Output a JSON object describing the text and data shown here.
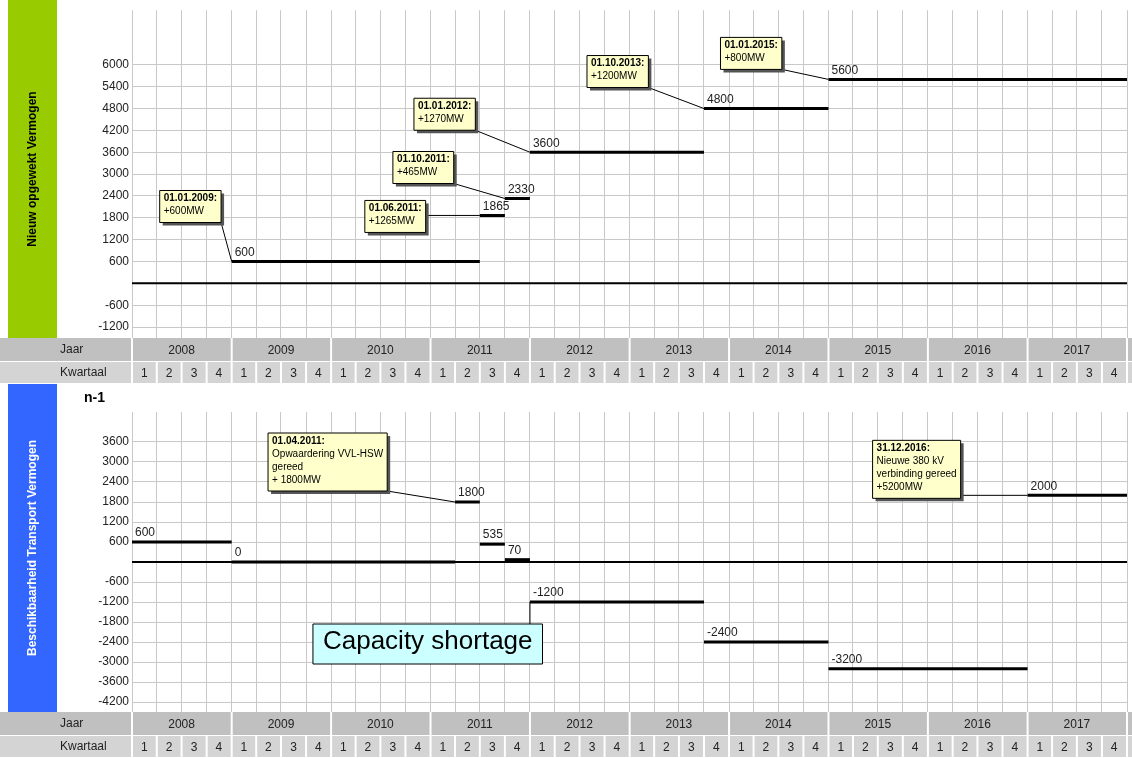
{
  "chart_data": [
    {
      "type": "line",
      "ylabel": "Nieuw opgewekt Vermogen",
      "xlabel": "Kwartaal",
      "x2label": "Jaar",
      "marker": "none",
      "grid": true,
      "xlim": [
        "2008-01-01",
        "2018-01-01"
      ],
      "xticks": [
        {
          "value": "2008-01-01",
          "label": null
        },
        {
          "value": "2008-02-15",
          "label": "1"
        },
        {
          "value": "2008-04-01",
          "label": null
        },
        {
          "value": "2008-05-16",
          "label": "2"
        },
        {
          "value": "2008-07-01",
          "label": null
        },
        {
          "value": "2008-08-16",
          "label": "3"
        },
        {
          "value": "2008-10-01",
          "label": null
        },
        {
          "value": "2008-11-15",
          "label": "4"
        },
        {
          "value": "2009-01-01",
          "label": null
        },
        {
          "value": "2009-02-15",
          "label": "1"
        },
        {
          "value": "2009-04-01",
          "label": null
        },
        {
          "value": "2009-05-16",
          "label": "2"
        },
        {
          "value": "2009-07-01",
          "label": null
        },
        {
          "value": "2009-08-16",
          "label": "3"
        },
        {
          "value": "2009-10-01",
          "label": null
        },
        {
          "value": "2009-11-15",
          "label": "4"
        },
        {
          "value": "2010-01-01",
          "label": null
        },
        {
          "value": "2010-02-15",
          "label": "1"
        },
        {
          "value": "2010-04-01",
          "label": null
        },
        {
          "value": "2010-05-16",
          "label": "2"
        },
        {
          "value": "2010-07-01",
          "label": null
        },
        {
          "value": "2010-08-16",
          "label": "3"
        },
        {
          "value": "2010-10-01",
          "label": null
        },
        {
          "value": "2010-11-15",
          "label": "4"
        },
        {
          "value": "2011-01-01",
          "label": null
        },
        {
          "value": "2011-02-15",
          "label": "1"
        },
        {
          "value": "2011-04-01",
          "label": null
        },
        {
          "value": "2011-05-16",
          "label": "2"
        },
        {
          "value": "2011-07-01",
          "label": null
        },
        {
          "value": "2011-08-16",
          "label": "3"
        },
        {
          "value": "2011-10-01",
          "label": null
        },
        {
          "value": "2011-11-15",
          "label": "4"
        },
        {
          "value": "2012-01-01",
          "label": null
        },
        {
          "value": "2012-02-15",
          "label": "1"
        },
        {
          "value": "2012-04-01",
          "label": null
        },
        {
          "value": "2012-05-16",
          "label": "2"
        },
        {
          "value": "2012-07-01",
          "label": null
        },
        {
          "value": "2012-08-16",
          "label": "3"
        },
        {
          "value": "2012-10-01",
          "label": null
        },
        {
          "value": "2012-11-15",
          "label": "4"
        },
        {
          "value": "2013-01-01",
          "label": null
        },
        {
          "value": "2013-02-15",
          "label": "1"
        },
        {
          "value": "2013-04-01",
          "label": null
        },
        {
          "value": "2013-05-16",
          "label": "2"
        },
        {
          "value": "2013-07-01",
          "label": null
        },
        {
          "value": "2013-08-16",
          "label": "3"
        },
        {
          "value": "2013-10-01",
          "label": null
        },
        {
          "value": "2013-11-15",
          "label": "4"
        },
        {
          "value": "2014-01-01",
          "label": null
        },
        {
          "value": "2014-02-15",
          "label": "1"
        },
        {
          "value": "2014-04-01",
          "label": null
        },
        {
          "value": "2014-05-16",
          "label": "2"
        },
        {
          "value": "2014-07-01",
          "label": null
        },
        {
          "value": "2014-08-16",
          "label": "3"
        },
        {
          "value": "2014-10-01",
          "label": null
        },
        {
          "value": "2014-11-15",
          "label": "4"
        },
        {
          "value": "2015-01-01",
          "label": null
        },
        {
          "value": "2015-02-15",
          "label": "1"
        },
        {
          "value": "2015-04-01",
          "label": null
        },
        {
          "value": "2015-05-16",
          "label": "2"
        },
        {
          "value": "2015-07-01",
          "label": null
        },
        {
          "value": "2015-08-16",
          "label": "3"
        },
        {
          "value": "2015-10-01",
          "label": null
        },
        {
          "value": "2015-11-15",
          "label": "4"
        },
        {
          "value": "2016-01-01",
          "label": null
        },
        {
          "value": "2016-02-15",
          "label": "1"
        },
        {
          "value": "2016-04-01",
          "label": null
        },
        {
          "value": "2016-05-16",
          "label": "2"
        },
        {
          "value": "2016-07-01",
          "label": null
        },
        {
          "value": "2016-08-16",
          "label": "3"
        },
        {
          "value": "2016-10-01",
          "label": null
        },
        {
          "value": "2016-11-15",
          "label": "4"
        },
        {
          "value": "2017-01-01",
          "label": null
        },
        {
          "value": "2017-02-15",
          "label": "1"
        },
        {
          "value": "2017-04-01",
          "label": null
        },
        {
          "value": "2017-05-16",
          "label": "2"
        },
        {
          "value": "2017-07-01",
          "label": null
        },
        {
          "value": "2017-08-16",
          "label": "3"
        },
        {
          "value": "2017-10-01",
          "label": null
        },
        {
          "value": "2017-11-15",
          "label": "4"
        },
        {
          "value": "2018-01-01",
          "label": null
        }
      ],
      "x2lim": [
        "2008-01-01",
        "2018-01-01"
      ],
      "x2ticks": [
        {
          "value": "2008-01-01",
          "label": null
        },
        {
          "value": "2008-07-01",
          "label": "2008"
        },
        {
          "value": "2009-01-01",
          "label": null
        },
        {
          "value": "2009-07-01",
          "label": "2009"
        },
        {
          "value": "2010-01-01",
          "label": null
        },
        {
          "value": "2010-07-01",
          "label": "2010"
        },
        {
          "value": "2011-01-01",
          "label": null
        },
        {
          "value": "2011-07-01",
          "label": "2011"
        },
        {
          "value": "2012-01-01",
          "label": null
        },
        {
          "value": "2012-07-01",
          "label": "2012"
        },
        {
          "value": "2013-01-01",
          "label": null
        },
        {
          "value": "2013-07-01",
          "label": "2013"
        },
        {
          "value": "2014-01-01",
          "label": null
        },
        {
          "value": "2014-07-01",
          "label": "2014"
        },
        {
          "value": "2015-01-01",
          "label": null
        },
        {
          "value": "2015-07-01",
          "label": "2015"
        },
        {
          "value": "2016-01-01",
          "label": null
        },
        {
          "value": "2016-07-01",
          "label": "2016"
        },
        {
          "value": "2017-01-01",
          "label": null
        },
        {
          "value": "2017-07-01",
          "label": "2017"
        },
        {
          "value": "2018-01-01",
          "label": null
        }
      ],
      "ylim": [
        -1500,
        7500
      ],
      "yticks": [
        6000,
        5400,
        4800,
        4200,
        3600,
        3000,
        2400,
        1800,
        1200,
        600,
        -600,
        -1200
      ],
      "series": [
        {
          "color": "#000000",
          "x": [
            "2009-01-01",
            "2011-07-01"
          ],
          "values": [
            600,
            600
          ],
          "value_labels": [
            "600",
            null
          ]
        },
        {
          "color": "#000000",
          "x": [
            "2011-07-01",
            "2011-10-01"
          ],
          "values": [
            1865,
            1865
          ],
          "value_labels": [
            "1865",
            null
          ]
        },
        {
          "color": "#000000",
          "x": [
            "2011-10-01",
            "2012-01-01"
          ],
          "values": [
            2330,
            2330
          ],
          "value_labels": [
            "2330",
            null
          ]
        },
        {
          "color": "#000000",
          "x": [
            "2012-01-01",
            "2013-10-01"
          ],
          "values": [
            3600,
            3600
          ],
          "value_labels": [
            "3600",
            null
          ]
        },
        {
          "color": "#000000",
          "x": [
            "2013-10-01",
            "2015-01-01"
          ],
          "values": [
            4800,
            4800
          ],
          "value_labels": [
            "4800",
            null
          ]
        },
        {
          "color": "#000000",
          "x": [
            "2015-01-01",
            "2018-01-01"
          ],
          "values": [
            5600,
            5600
          ],
          "value_labels": [
            "5600",
            null
          ]
        }
      ],
      "ref_lines": [
        {
          "axis": "y",
          "value": 0,
          "color": "#000000"
        }
      ],
      "annotations": [
        {
          "text": "01.01.2009:\n+600MW",
          "x": "2009-01-01",
          "y": 600
        },
        {
          "text": "01.06.2011:\n+1265MW",
          "x": "2011-07-01",
          "y": 1865
        },
        {
          "text": "01.10.2011:\n+465MW",
          "x": "2011-10-01",
          "y": 2330
        },
        {
          "text": "01.01.2012:\n+1270MW",
          "x": "2012-01-01",
          "y": 3600
        },
        {
          "text": "01.10.2013:\n+1200MW",
          "x": "2013-10-01",
          "y": 4800
        },
        {
          "text": "01.01.2015:\n+800MW",
          "x": "2015-01-01",
          "y": 5600
        }
      ]
    },
    {
      "type": "line",
      "title": "n-1",
      "ylabel": "Beschikbaarheid Transport Vermogen",
      "xlabel": "Kwartaal",
      "x2label": "Jaar",
      "marker": "none",
      "grid": true,
      "xlim": [
        "2008-01-01",
        "2018-01-01"
      ],
      "xticks": [
        {
          "value": "2008-01-01",
          "label": null
        },
        {
          "value": "2008-02-15",
          "label": "1"
        },
        {
          "value": "2008-04-01",
          "label": null
        },
        {
          "value": "2008-05-16",
          "label": "2"
        },
        {
          "value": "2008-07-01",
          "label": null
        },
        {
          "value": "2008-08-16",
          "label": "3"
        },
        {
          "value": "2008-10-01",
          "label": null
        },
        {
          "value": "2008-11-15",
          "label": "4"
        },
        {
          "value": "2009-01-01",
          "label": null
        },
        {
          "value": "2009-02-15",
          "label": "1"
        },
        {
          "value": "2009-04-01",
          "label": null
        },
        {
          "value": "2009-05-16",
          "label": "2"
        },
        {
          "value": "2009-07-01",
          "label": null
        },
        {
          "value": "2009-08-16",
          "label": "3"
        },
        {
          "value": "2009-10-01",
          "label": null
        },
        {
          "value": "2009-11-15",
          "label": "4"
        },
        {
          "value": "2010-01-01",
          "label": null
        },
        {
          "value": "2010-02-15",
          "label": "1"
        },
        {
          "value": "2010-04-01",
          "label": null
        },
        {
          "value": "2010-05-16",
          "label": "2"
        },
        {
          "value": "2010-07-01",
          "label": null
        },
        {
          "value": "2010-08-16",
          "label": "3"
        },
        {
          "value": "2010-10-01",
          "label": null
        },
        {
          "value": "2010-11-15",
          "label": "4"
        },
        {
          "value": "2011-01-01",
          "label": null
        },
        {
          "value": "2011-02-15",
          "label": "1"
        },
        {
          "value": "2011-04-01",
          "label": null
        },
        {
          "value": "2011-05-16",
          "label": "2"
        },
        {
          "value": "2011-07-01",
          "label": null
        },
        {
          "value": "2011-08-16",
          "label": "3"
        },
        {
          "value": "2011-10-01",
          "label": null
        },
        {
          "value": "2011-11-15",
          "label": "4"
        },
        {
          "value": "2012-01-01",
          "label": null
        },
        {
          "value": "2012-02-15",
          "label": "1"
        },
        {
          "value": "2012-04-01",
          "label": null
        },
        {
          "value": "2012-05-16",
          "label": "2"
        },
        {
          "value": "2012-07-01",
          "label": null
        },
        {
          "value": "2012-08-16",
          "label": "3"
        },
        {
          "value": "2012-10-01",
          "label": null
        },
        {
          "value": "2012-11-15",
          "label": "4"
        },
        {
          "value": "2013-01-01",
          "label": null
        },
        {
          "value": "2013-02-15",
          "label": "1"
        },
        {
          "value": "2013-04-01",
          "label": null
        },
        {
          "value": "2013-05-16",
          "label": "2"
        },
        {
          "value": "2013-07-01",
          "label": null
        },
        {
          "value": "2013-08-16",
          "label": "3"
        },
        {
          "value": "2013-10-01",
          "label": null
        },
        {
          "value": "2013-11-15",
          "label": "4"
        },
        {
          "value": "2014-01-01",
          "label": null
        },
        {
          "value": "2014-02-15",
          "label": "1"
        },
        {
          "value": "2014-04-01",
          "label": null
        },
        {
          "value": "2014-05-16",
          "label": "2"
        },
        {
          "value": "2014-07-01",
          "label": null
        },
        {
          "value": "2014-08-16",
          "label": "3"
        },
        {
          "value": "2014-10-01",
          "label": null
        },
        {
          "value": "2014-11-15",
          "label": "4"
        },
        {
          "value": "2015-01-01",
          "label": null
        },
        {
          "value": "2015-02-15",
          "label": "1"
        },
        {
          "value": "2015-04-01",
          "label": null
        },
        {
          "value": "2015-05-16",
          "label": "2"
        },
        {
          "value": "2015-07-01",
          "label": null
        },
        {
          "value": "2015-08-16",
          "label": "3"
        },
        {
          "value": "2015-10-01",
          "label": null
        },
        {
          "value": "2015-11-15",
          "label": "4"
        },
        {
          "value": "2016-01-01",
          "label": null
        },
        {
          "value": "2016-02-15",
          "label": "1"
        },
        {
          "value": "2016-04-01",
          "label": null
        },
        {
          "value": "2016-05-16",
          "label": "2"
        },
        {
          "value": "2016-07-01",
          "label": null
        },
        {
          "value": "2016-08-16",
          "label": "3"
        },
        {
          "value": "2016-10-01",
          "label": null
        },
        {
          "value": "2016-11-15",
          "label": "4"
        },
        {
          "value": "2017-01-01",
          "label": null
        },
        {
          "value": "2017-02-15",
          "label": "1"
        },
        {
          "value": "2017-04-01",
          "label": null
        },
        {
          "value": "2017-05-16",
          "label": "2"
        },
        {
          "value": "2017-07-01",
          "label": null
        },
        {
          "value": "2017-08-16",
          "label": "3"
        },
        {
          "value": "2017-10-01",
          "label": null
        },
        {
          "value": "2017-11-15",
          "label": "4"
        },
        {
          "value": "2018-01-01",
          "label": null
        }
      ],
      "x2lim": [
        "2008-01-01",
        "2018-01-01"
      ],
      "x2ticks": [
        {
          "value": "2008-01-01",
          "label": null
        },
        {
          "value": "2008-07-01",
          "label": "2008"
        },
        {
          "value": "2009-01-01",
          "label": null
        },
        {
          "value": "2009-07-01",
          "label": "2009"
        },
        {
          "value": "2010-01-01",
          "label": null
        },
        {
          "value": "2010-07-01",
          "label": "2010"
        },
        {
          "value": "2011-01-01",
          "label": null
        },
        {
          "value": "2011-07-01",
          "label": "2011"
        },
        {
          "value": "2012-01-01",
          "label": null
        },
        {
          "value": "2012-07-01",
          "label": "2012"
        },
        {
          "value": "2013-01-01",
          "label": null
        },
        {
          "value": "2013-07-01",
          "label": "2013"
        },
        {
          "value": "2014-01-01",
          "label": null
        },
        {
          "value": "2014-07-01",
          "label": "2014"
        },
        {
          "value": "2015-01-01",
          "label": null
        },
        {
          "value": "2015-07-01",
          "label": "2015"
        },
        {
          "value": "2016-01-01",
          "label": null
        },
        {
          "value": "2016-07-01",
          "label": "2016"
        },
        {
          "value": "2017-01-01",
          "label": null
        },
        {
          "value": "2017-07-01",
          "label": "2017"
        },
        {
          "value": "2018-01-01",
          "label": null
        }
      ],
      "ylim": [
        -4500,
        4500
      ],
      "yticks": [
        3600,
        3000,
        2400,
        1800,
        1200,
        600,
        -600,
        -1200,
        -1800,
        -2400,
        -3000,
        -3600,
        -4200
      ],
      "series": [
        {
          "color": "#000000",
          "x": [
            "2008-01-01",
            "2009-01-01"
          ],
          "values": [
            600,
            600
          ],
          "value_labels": [
            "600",
            null
          ]
        },
        {
          "color": "#000000",
          "x": [
            "2009-01-01",
            "2011-04-01"
          ],
          "values": [
            0,
            0
          ],
          "value_labels": [
            "0",
            null
          ]
        },
        {
          "color": "#000000",
          "x": [
            "2011-04-01",
            "2011-07-01"
          ],
          "values": [
            1800,
            1800
          ],
          "value_labels": [
            "1800",
            null
          ]
        },
        {
          "color": "#000000",
          "x": [
            "2011-07-01",
            "2011-10-01"
          ],
          "values": [
            535,
            535
          ],
          "value_labels": [
            "535",
            null
          ]
        },
        {
          "color": "#000000",
          "x": [
            "2011-10-01",
            "2012-01-01"
          ],
          "values": [
            70,
            70
          ],
          "value_labels": [
            "70",
            null
          ]
        },
        {
          "color": "#000000",
          "x": [
            "2012-01-01",
            "2013-10-01"
          ],
          "values": [
            -1200,
            -1200
          ],
          "value_labels": [
            "-1200",
            null
          ]
        },
        {
          "color": "#000000",
          "x": [
            "2013-10-01",
            "2015-01-01"
          ],
          "values": [
            -2400,
            -2400
          ],
          "value_labels": [
            "-2400",
            null
          ]
        },
        {
          "color": "#000000",
          "x": [
            "2015-01-01",
            "2017-01-01"
          ],
          "values": [
            -3200,
            -3200
          ],
          "value_labels": [
            "-3200",
            null
          ]
        },
        {
          "color": "#000000",
          "x": [
            "2017-01-01",
            "2018-01-01"
          ],
          "values": [
            2000,
            2000
          ],
          "value_labels": [
            "2000",
            null
          ]
        }
      ],
      "ref_lines": [
        {
          "axis": "y",
          "value": 0,
          "color": "#000000"
        }
      ],
      "annotations": [
        {
          "text": "01.04.2011:\nOpwaardering VVL-HSW\ngereed\n+ 1800MW",
          "x": "2011-04-01",
          "y": 1800
        },
        {
          "text": "31.12.2016:\nNieuwe 380 kV\nverbinding gereed\n+5200MW",
          "x": "2017-01-01",
          "y": 2000
        },
        {
          "text": "Capacity shortage",
          "x": "2012-01-01",
          "y": -1200
        }
      ]
    }
  ]
}
